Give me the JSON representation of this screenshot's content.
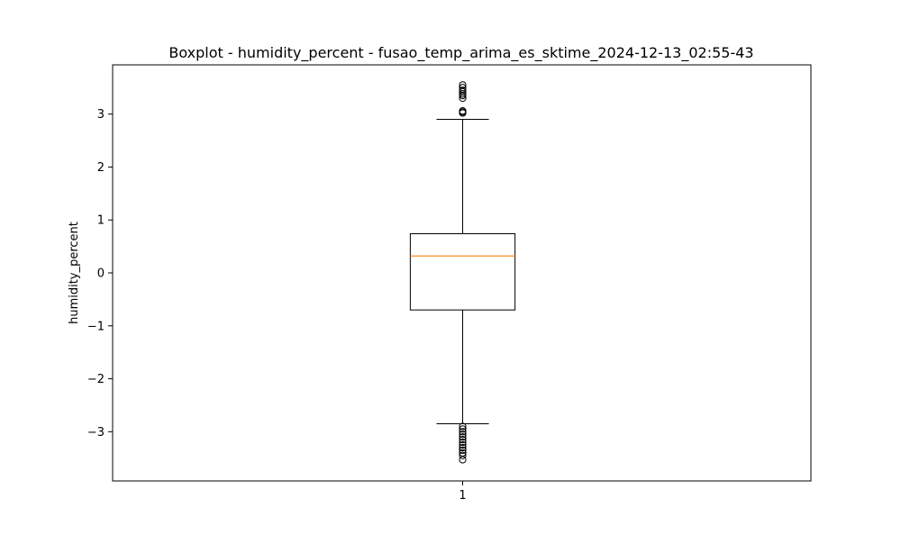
{
  "chart_data": {
    "type": "boxplot",
    "title": "Boxplot - humidity_percent - fusao_temp_arima_es_sktime_2024-12-13_02:55-43",
    "xlabel": "",
    "ylabel": "humidity_percent",
    "ylim": [
      -3.93,
      3.93
    ],
    "y_ticks": [
      -3,
      -2,
      -1,
      0,
      1,
      2,
      3
    ],
    "x_tick_labels": [
      "1"
    ],
    "grid": false,
    "colors": {
      "box": "#000000",
      "median": "#ff7f0e",
      "whisker": "#000000",
      "flier": "#000000"
    },
    "boxes": [
      {
        "label": "1",
        "whisker_low": -2.85,
        "q1": -0.7,
        "median": 0.32,
        "q3": 0.74,
        "whisker_high": 2.9,
        "fliers": [
          3.02,
          3.04,
          3.06,
          3.3,
          3.35,
          3.38,
          3.42,
          3.45,
          3.5,
          3.55,
          -2.9,
          -2.95,
          -3.0,
          -3.05,
          -3.1,
          -3.15,
          -3.2,
          -3.25,
          -3.3,
          -3.35,
          -3.4,
          -3.45,
          -3.53
        ]
      }
    ]
  }
}
